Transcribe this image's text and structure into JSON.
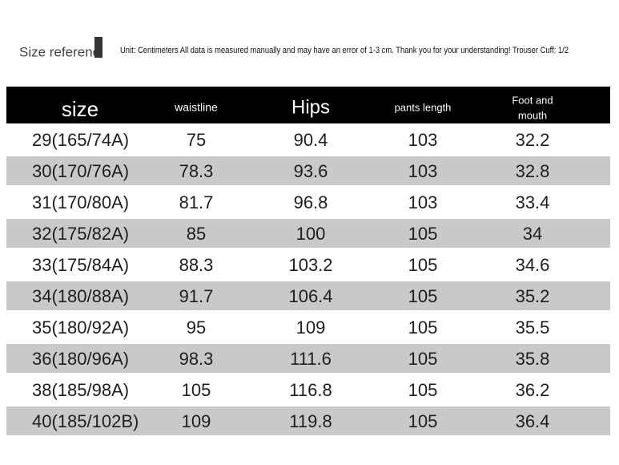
{
  "header": {
    "title": "Size referenc",
    "note": "Unit: Centimeters All data is measured manually and may have an error of 1-3 cm. Thank you for your understanding! Trouser Cuff: 1/2"
  },
  "table": {
    "columns": [
      "size",
      "waistline",
      "Hips",
      "pants length",
      [
        "Foot and",
        "mouth"
      ]
    ],
    "rows": [
      [
        "29(165/74A)",
        75,
        90.4,
        103,
        32.2
      ],
      [
        "30(170/76A)",
        78.3,
        93.6,
        103,
        32.8
      ],
      [
        "31(170/80A)",
        81.7,
        96.8,
        103,
        33.4
      ],
      [
        "32(175/82A)",
        85,
        100,
        105,
        34
      ],
      [
        "33(175/84A)",
        88.3,
        103.2,
        105,
        34.6
      ],
      [
        "34(180/88A)",
        91.7,
        106.4,
        105,
        35.2
      ],
      [
        "35(180/92A)",
        95,
        109,
        105,
        35.5
      ],
      [
        "36(180/96A)",
        98.3,
        111.6,
        105,
        35.8
      ],
      [
        "38(185/98A)",
        105,
        116.8,
        105,
        36.2
      ],
      [
        "40(185/102B)",
        109,
        119.8,
        105,
        36.4
      ]
    ]
  }
}
